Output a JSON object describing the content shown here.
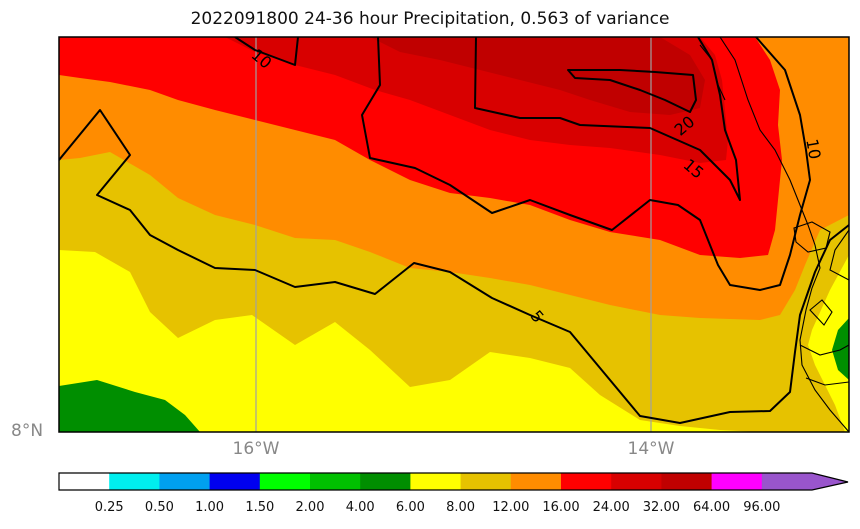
{
  "title": "2022091800 24-36 hour Precipitation, 0.563 of variance",
  "map": {
    "lat_labels": [
      "8°N"
    ],
    "lon_labels": [
      "16°W",
      "14°W"
    ],
    "contour_labels": [
      "10",
      "20",
      "15",
      "10",
      "5"
    ]
  },
  "colorbar": {
    "tick_labels": [
      "0.25",
      "0.50",
      "1.00",
      "1.50",
      "2.00",
      "4.00",
      "6.00",
      "8.00",
      "12.00",
      "16.00",
      "24.00",
      "32.00",
      "64.00",
      "96.00"
    ],
    "colors": [
      "#ffffff",
      "#00eeee",
      "#00a0f0",
      "#0000f0",
      "#00ff00",
      "#00c000",
      "#008e00",
      "#ffff00",
      "#e6c200",
      "#ff8c00",
      "#ff0000",
      "#d80000",
      "#c00000",
      "#ff00ff",
      "#9955cc"
    ]
  },
  "fill_colors": {
    "dark_green": "#008e00",
    "yellow": "#ffff00",
    "gold": "#e6c200",
    "orange": "#ff8c00",
    "red": "#ff0000",
    "dark_red": "#d80000",
    "darker_red": "#c00000"
  }
}
